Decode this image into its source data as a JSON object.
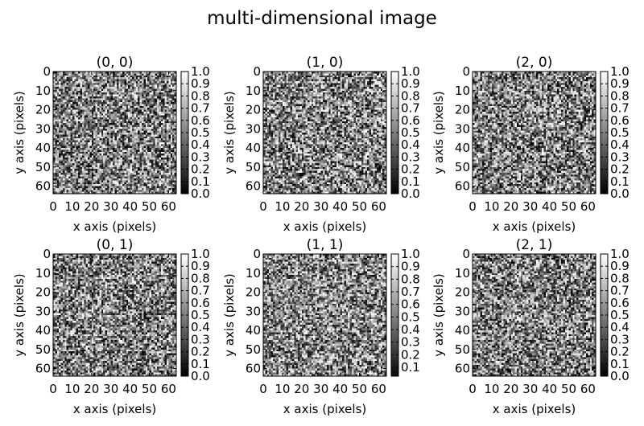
{
  "figure": {
    "title": "multi-dimensional image"
  },
  "chart_data": [
    {
      "type": "heatmap",
      "title": "(0, 0)",
      "xlabel": "x axis (pixels)",
      "ylabel": "y axis (pixels)",
      "xlim": [
        0,
        64
      ],
      "ylim": [
        64,
        0
      ],
      "xticks": [
        0,
        10,
        20,
        30,
        40,
        50,
        60
      ],
      "yticks": [
        0,
        10,
        20,
        30,
        40,
        50,
        60
      ],
      "colormap": "gray",
      "grid_size": [
        64,
        64
      ],
      "value_range": [
        0,
        1
      ],
      "values": "uniform random noise",
      "colorbar": {
        "range": [
          0,
          1
        ],
        "ticks": [
          "0.0",
          "0.1",
          "0.2",
          "0.3",
          "0.4",
          "0.5",
          "0.6",
          "0.7",
          "0.8",
          "0.9",
          "1.0"
        ]
      }
    },
    {
      "type": "heatmap",
      "title": "(1, 0)",
      "xlabel": "x axis (pixels)",
      "ylabel": "y axis (pixels)",
      "xlim": [
        0,
        64
      ],
      "ylim": [
        64,
        0
      ],
      "xticks": [
        0,
        10,
        20,
        30,
        40,
        50,
        60
      ],
      "yticks": [
        0,
        10,
        20,
        30,
        40,
        50,
        60
      ],
      "colormap": "gray",
      "grid_size": [
        64,
        64
      ],
      "value_range": [
        0,
        1
      ],
      "values": "uniform random noise",
      "colorbar": {
        "range": [
          0,
          1
        ],
        "ticks": [
          "0.0",
          "0.1",
          "0.2",
          "0.3",
          "0.4",
          "0.5",
          "0.6",
          "0.7",
          "0.8",
          "0.9",
          "1.0"
        ]
      }
    },
    {
      "type": "heatmap",
      "title": "(2, 0)",
      "xlabel": "x axis (pixels)",
      "ylabel": "y axis (pixels)",
      "xlim": [
        0,
        64
      ],
      "ylim": [
        64,
        0
      ],
      "xticks": [
        0,
        10,
        20,
        30,
        40,
        50,
        60
      ],
      "yticks": [
        0,
        10,
        20,
        30,
        40,
        50,
        60
      ],
      "colormap": "gray",
      "grid_size": [
        64,
        64
      ],
      "value_range": [
        0,
        1
      ],
      "values": "uniform random noise",
      "colorbar": {
        "range": [
          0,
          1
        ],
        "ticks": [
          "0.0",
          "0.1",
          "0.2",
          "0.3",
          "0.4",
          "0.5",
          "0.6",
          "0.7",
          "0.8",
          "0.9",
          "1.0"
        ]
      }
    },
    {
      "type": "heatmap",
      "title": "(0, 1)",
      "xlabel": "x axis (pixels)",
      "ylabel": "y axis (pixels)",
      "xlim": [
        0,
        64
      ],
      "ylim": [
        64,
        0
      ],
      "xticks": [
        0,
        10,
        20,
        30,
        40,
        50,
        60
      ],
      "yticks": [
        0,
        10,
        20,
        30,
        40,
        50,
        60
      ],
      "colormap": "gray",
      "grid_size": [
        64,
        64
      ],
      "value_range": [
        0,
        1
      ],
      "values": "uniform random noise",
      "colorbar": {
        "range": [
          0,
          1
        ],
        "ticks": [
          "0.0",
          "0.1",
          "0.2",
          "0.3",
          "0.4",
          "0.5",
          "0.6",
          "0.7",
          "0.8",
          "0.9",
          "1.0"
        ]
      }
    },
    {
      "type": "heatmap",
      "title": "(1, 1)",
      "xlabel": "x axis (pixels)",
      "ylabel": "y axis (pixels)",
      "xlim": [
        0,
        64
      ],
      "ylim": [
        64,
        0
      ],
      "xticks": [
        0,
        10,
        20,
        30,
        40,
        50,
        60
      ],
      "yticks": [
        0,
        10,
        20,
        30,
        40,
        50,
        60
      ],
      "colormap": "gray",
      "grid_size": [
        64,
        64
      ],
      "value_range": [
        0.03,
        1
      ],
      "values": "uniform random noise",
      "colorbar": {
        "range": [
          0.03,
          1
        ],
        "ticks": [
          "0.1",
          "0.2",
          "0.3",
          "0.4",
          "0.5",
          "0.6",
          "0.7",
          "0.8",
          "0.9",
          "1.0"
        ]
      }
    },
    {
      "type": "heatmap",
      "title": "(2, 1)",
      "xlabel": "x axis (pixels)",
      "ylabel": "y axis (pixels)",
      "xlim": [
        0,
        64
      ],
      "ylim": [
        64,
        0
      ],
      "xticks": [
        0,
        10,
        20,
        30,
        40,
        50,
        60
      ],
      "yticks": [
        0,
        10,
        20,
        30,
        40,
        50,
        60
      ],
      "colormap": "gray",
      "grid_size": [
        64,
        64
      ],
      "value_range": [
        0,
        1
      ],
      "values": "uniform random noise",
      "colorbar": {
        "range": [
          0,
          1
        ],
        "ticks": [
          "0.0",
          "0.1",
          "0.2",
          "0.3",
          "0.4",
          "0.5",
          "0.6",
          "0.7",
          "0.8",
          "0.9",
          "1.0"
        ]
      }
    }
  ]
}
